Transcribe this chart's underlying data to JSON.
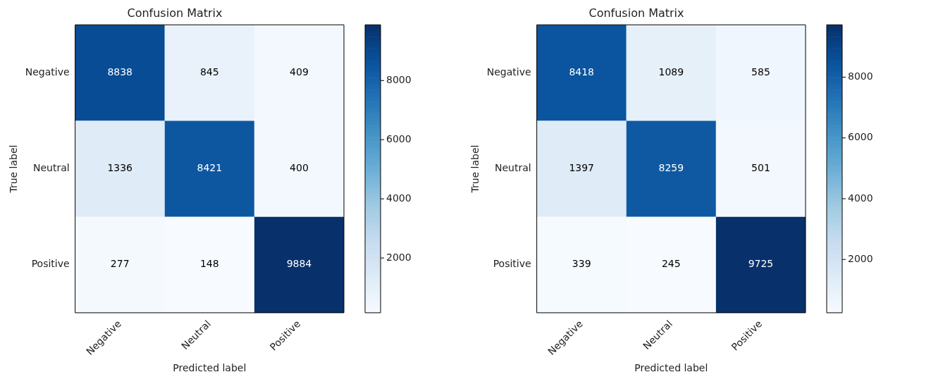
{
  "chart_data": [
    {
      "type": "heatmap",
      "title": "Confusion Matrix",
      "xlabel": "Predicted label",
      "ylabel": "True label",
      "categories": [
        "Negative",
        "Neutral",
        "Positive"
      ],
      "y_categories": [
        "Negative",
        "Neutral",
        "Positive"
      ],
      "cells": [
        [
          8838,
          845,
          409
        ],
        [
          1336,
          8421,
          400
        ],
        [
          277,
          148,
          9884
        ]
      ],
      "data_labels": true,
      "clim": [
        148,
        9884
      ],
      "cticks": [
        2000,
        4000,
        6000,
        8000
      ]
    },
    {
      "type": "heatmap",
      "title": "Confusion Matrix",
      "xlabel": "Predicted label",
      "ylabel": "True label",
      "categories": [
        "Negative",
        "Neutral",
        "Positive"
      ],
      "y_categories": [
        "Negative",
        "Neutral",
        "Positive"
      ],
      "cells": [
        [
          8418,
          1089,
          585
        ],
        [
          1397,
          8259,
          501
        ],
        [
          339,
          245,
          9725
        ]
      ],
      "data_labels": true,
      "clim": [
        245,
        9725
      ],
      "cticks": [
        2000,
        4000,
        6000,
        8000
      ]
    }
  ]
}
